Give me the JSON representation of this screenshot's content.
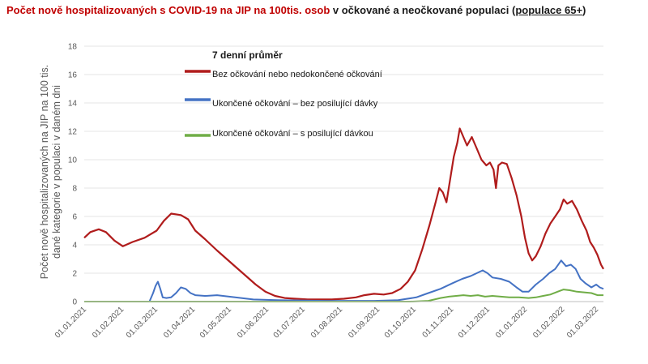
{
  "chart_data": {
    "type": "line",
    "title_part1": "Počet nově hospitalizovaných s COVID-19 na JIP na 100tis. osob",
    "title_part2": " v očkované a neočkované populaci (",
    "title_part3": "populace 65+",
    "title_part4": ")",
    "ylabel_line1": "Počet nově hospitalizovaných na JIP na 100 tis.",
    "ylabel_line2": "dané kategorie v populaci v daném dni",
    "ylim": [
      0,
      18
    ],
    "yticks": [
      "0",
      "2",
      "4",
      "6",
      "8",
      "10",
      "12",
      "14",
      "16",
      "18"
    ],
    "xticks": [
      "01.01.2021",
      "01.02.2021",
      "01.03.2021",
      "01.04.2021",
      "01.05.2021",
      "01.06.2021",
      "01.07.2021",
      "01.08.2021",
      "01.09.2021",
      "01.10.2021",
      "01.11.2021",
      "01.12.2021",
      "01.01.2022",
      "01.02.2022",
      "01.03.2022"
    ],
    "legend_title": "7 denní průměr",
    "series": [
      {
        "name": "Bez očkování nebo nedokončené očkování",
        "color": "#b01c1c",
        "points": [
          [
            0,
            4.5
          ],
          [
            5,
            4.9
          ],
          [
            12,
            5.1
          ],
          [
            18,
            4.9
          ],
          [
            25,
            4.3
          ],
          [
            32,
            3.9
          ],
          [
            40,
            4.2
          ],
          [
            50,
            4.5
          ],
          [
            60,
            5.0
          ],
          [
            66,
            5.7
          ],
          [
            72,
            6.2
          ],
          [
            80,
            6.1
          ],
          [
            86,
            5.8
          ],
          [
            92,
            5.0
          ],
          [
            100,
            4.4
          ],
          [
            105,
            4.0
          ],
          [
            110,
            3.6
          ],
          [
            118,
            3.0
          ],
          [
            126,
            2.4
          ],
          [
            134,
            1.8
          ],
          [
            142,
            1.2
          ],
          [
            150,
            0.7
          ],
          [
            158,
            0.4
          ],
          [
            166,
            0.25
          ],
          [
            175,
            0.2
          ],
          [
            185,
            0.15
          ],
          [
            195,
            0.15
          ],
          [
            205,
            0.15
          ],
          [
            215,
            0.2
          ],
          [
            225,
            0.3
          ],
          [
            232,
            0.45
          ],
          [
            240,
            0.55
          ],
          [
            248,
            0.5
          ],
          [
            255,
            0.6
          ],
          [
            262,
            0.9
          ],
          [
            268,
            1.4
          ],
          [
            274,
            2.2
          ],
          [
            280,
            3.7
          ],
          [
            286,
            5.4
          ],
          [
            291,
            7.0
          ],
          [
            294,
            8.0
          ],
          [
            297,
            7.7
          ],
          [
            300,
            7.0
          ],
          [
            303,
            8.6
          ],
          [
            306,
            10.2
          ],
          [
            309,
            11.2
          ],
          [
            311,
            12.2
          ],
          [
            314,
            11.6
          ],
          [
            317,
            11.0
          ],
          [
            321,
            11.6
          ],
          [
            325,
            10.8
          ],
          [
            329,
            10.0
          ],
          [
            333,
            9.6
          ],
          [
            336,
            9.8
          ],
          [
            339,
            9.3
          ],
          [
            341,
            8.0
          ],
          [
            343,
            9.6
          ],
          [
            346,
            9.8
          ],
          [
            350,
            9.7
          ],
          [
            354,
            8.7
          ],
          [
            358,
            7.5
          ],
          [
            362,
            6.0
          ],
          [
            365,
            4.5
          ],
          [
            368,
            3.4
          ],
          [
            371,
            2.9
          ],
          [
            374,
            3.2
          ],
          [
            378,
            3.9
          ],
          [
            382,
            4.8
          ],
          [
            386,
            5.5
          ],
          [
            390,
            6.0
          ],
          [
            394,
            6.5
          ],
          [
            397,
            7.2
          ],
          [
            400,
            6.9
          ],
          [
            404,
            7.1
          ],
          [
            408,
            6.5
          ],
          [
            412,
            5.7
          ],
          [
            416,
            5.0
          ],
          [
            419,
            4.2
          ],
          [
            422,
            3.8
          ],
          [
            425,
            3.3
          ],
          [
            428,
            2.6
          ],
          [
            430,
            2.3
          ]
        ]
      },
      {
        "name": "Ukončené očkování – bez posilující dávky",
        "color": "#4472c4",
        "points": [
          [
            0,
            0.0
          ],
          [
            40,
            0.0
          ],
          [
            54,
            0.0
          ],
          [
            57,
            0.6
          ],
          [
            59,
            1.1
          ],
          [
            61,
            1.4
          ],
          [
            63,
            0.9
          ],
          [
            65,
            0.3
          ],
          [
            68,
            0.25
          ],
          [
            72,
            0.3
          ],
          [
            76,
            0.6
          ],
          [
            80,
            1.0
          ],
          [
            84,
            0.9
          ],
          [
            88,
            0.6
          ],
          [
            92,
            0.45
          ],
          [
            100,
            0.4
          ],
          [
            110,
            0.45
          ],
          [
            120,
            0.35
          ],
          [
            130,
            0.25
          ],
          [
            140,
            0.15
          ],
          [
            160,
            0.1
          ],
          [
            200,
            0.05
          ],
          [
            240,
            0.05
          ],
          [
            260,
            0.1
          ],
          [
            275,
            0.3
          ],
          [
            285,
            0.6
          ],
          [
            295,
            0.9
          ],
          [
            305,
            1.3
          ],
          [
            313,
            1.6
          ],
          [
            320,
            1.8
          ],
          [
            325,
            2.0
          ],
          [
            330,
            2.2
          ],
          [
            334,
            2.0
          ],
          [
            338,
            1.7
          ],
          [
            345,
            1.6
          ],
          [
            352,
            1.4
          ],
          [
            358,
            1.0
          ],
          [
            363,
            0.7
          ],
          [
            368,
            0.7
          ],
          [
            374,
            1.2
          ],
          [
            380,
            1.6
          ],
          [
            385,
            2.0
          ],
          [
            390,
            2.3
          ],
          [
            395,
            2.9
          ],
          [
            399,
            2.5
          ],
          [
            403,
            2.6
          ],
          [
            407,
            2.3
          ],
          [
            411,
            1.6
          ],
          [
            415,
            1.3
          ],
          [
            420,
            1.0
          ],
          [
            424,
            1.2
          ],
          [
            427,
            1.0
          ],
          [
            430,
            0.9
          ]
        ]
      },
      {
        "name": "Ukončené očkování – s posilující dávkou",
        "color": "#70ad47",
        "points": [
          [
            0,
            0.0
          ],
          [
            270,
            0.0
          ],
          [
            285,
            0.05
          ],
          [
            295,
            0.25
          ],
          [
            302,
            0.35
          ],
          [
            308,
            0.4
          ],
          [
            314,
            0.45
          ],
          [
            320,
            0.4
          ],
          [
            326,
            0.45
          ],
          [
            332,
            0.35
          ],
          [
            338,
            0.4
          ],
          [
            345,
            0.35
          ],
          [
            352,
            0.3
          ],
          [
            360,
            0.3
          ],
          [
            368,
            0.25
          ],
          [
            374,
            0.3
          ],
          [
            380,
            0.4
          ],
          [
            386,
            0.5
          ],
          [
            392,
            0.7
          ],
          [
            397,
            0.85
          ],
          [
            402,
            0.8
          ],
          [
            408,
            0.7
          ],
          [
            414,
            0.65
          ],
          [
            420,
            0.6
          ],
          [
            425,
            0.45
          ],
          [
            430,
            0.45
          ]
        ]
      }
    ],
    "x_tick_days": [
      0,
      31,
      59,
      90,
      120,
      151,
      181,
      212,
      243,
      273,
      304,
      334,
      365,
      396,
      424
    ],
    "x_max_day": 430
  }
}
